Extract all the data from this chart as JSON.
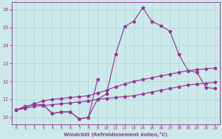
{
  "x": [
    0,
    1,
    2,
    3,
    4,
    5,
    6,
    7,
    8,
    9,
    10,
    11,
    12,
    13,
    14,
    15,
    16,
    17,
    18,
    19,
    20,
    21,
    22
  ],
  "y_main": [
    10.4,
    10.6,
    10.7,
    10.7,
    10.2,
    10.3,
    10.3,
    9.9,
    10.0,
    11.0,
    11.3,
    13.5,
    15.05,
    15.35,
    16.1,
    15.35,
    15.1,
    null,
    null,
    null,
    null,
    null,
    null
  ],
  "y_curve2": [
    10.4,
    10.6,
    10.7,
    10.7,
    10.2,
    10.3,
    10.3,
    9.9,
    10.0,
    11.0,
    11.3,
    13.5,
    15.05,
    15.35,
    16.1,
    15.35,
    15.1,
    14.8,
    13.5,
    12.6,
    12.5,
    11.65,
    11.6
  ],
  "y_slope1": [
    10.4,
    10.55,
    10.75,
    10.9,
    11.0,
    11.05,
    11.1,
    11.15,
    11.2,
    11.35,
    11.5,
    11.7,
    11.85,
    12.0,
    12.1,
    12.2,
    12.3,
    12.4,
    12.5,
    12.6,
    12.65,
    12.7,
    12.75
  ],
  "y_slope2": [
    10.4,
    10.5,
    10.6,
    10.65,
    10.7,
    10.75,
    10.8,
    10.85,
    10.9,
    11.0,
    11.05,
    11.1,
    11.15,
    11.2,
    11.3,
    11.4,
    11.5,
    11.6,
    11.7,
    11.8,
    11.85,
    11.9,
    11.95
  ],
  "y_dip": [
    10.4,
    10.6,
    10.7,
    10.7,
    10.2,
    10.3,
    10.3,
    9.9,
    10.0,
    12.1,
    null,
    null,
    null,
    null,
    null,
    null,
    null,
    null,
    null,
    null,
    null,
    null,
    null
  ],
  "bg_color": "#cce9e9",
  "line_color": "#993399",
  "grid_color": "#b0dada",
  "xlabel": "Windchill (Refroidissement éolien,°C)",
  "tick_color": "#993399",
  "yticks": [
    10,
    11,
    12,
    13,
    14,
    15,
    16
  ],
  "xticks": [
    0,
    1,
    2,
    3,
    4,
    5,
    6,
    7,
    8,
    9,
    10,
    11,
    12,
    13,
    14,
    15,
    16,
    17,
    18,
    19,
    20,
    21,
    22
  ],
  "ylim": [
    9.6,
    16.4
  ],
  "xlim": [
    -0.5,
    22.5
  ]
}
